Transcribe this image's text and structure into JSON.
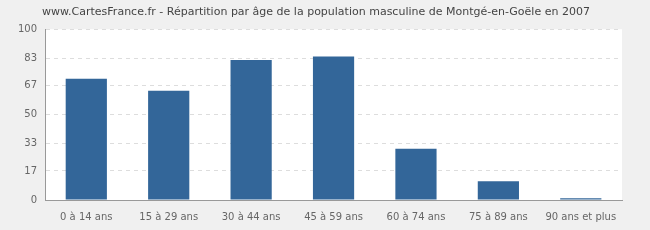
{
  "chart_data": {
    "type": "bar",
    "title": "www.CartesFrance.fr - Répartition par âge de la population masculine de Montgé-en-Goële en 2007",
    "categories": [
      "0 à 14 ans",
      "15 à 29 ans",
      "30 à 44 ans",
      "45 à 59 ans",
      "60 à 74 ans",
      "75 à 89 ans",
      "90 ans et plus"
    ],
    "values": [
      71,
      64,
      82,
      84,
      30,
      11,
      1
    ],
    "color": "#336699",
    "ylim": [
      0,
      100
    ],
    "yticks": [
      0,
      17,
      33,
      50,
      67,
      83,
      100
    ],
    "grid": true
  }
}
